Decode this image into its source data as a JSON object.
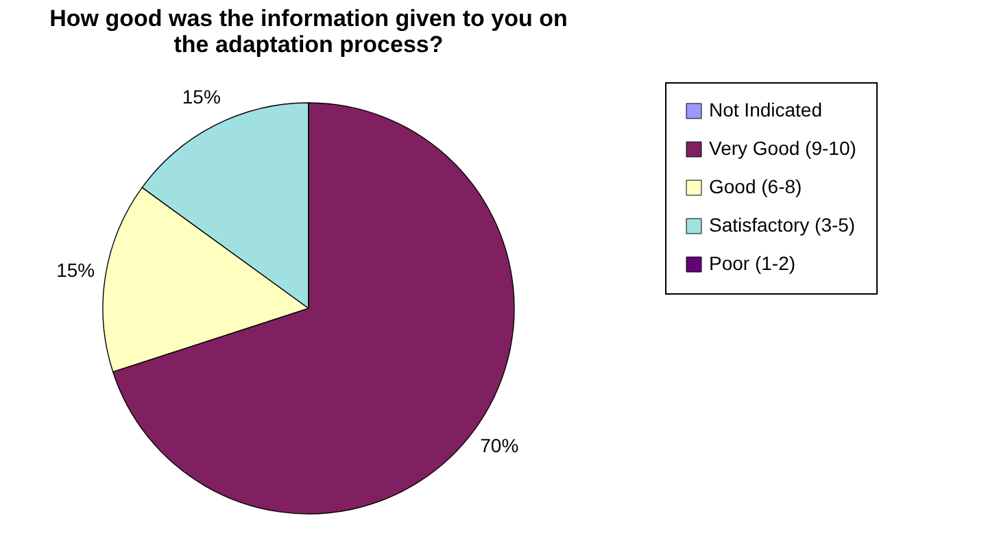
{
  "chart_data": {
    "type": "pie",
    "title": "How good was the information given to you on\nthe adaptation process?",
    "categories": [
      "Not Indicated",
      "Very Good (9-10)",
      "Good (6-8)",
      "Satisfactory (3-5)",
      "Poor (1-2)"
    ],
    "values": [
      0,
      70,
      15,
      15,
      0
    ],
    "colors": [
      "#9999ff",
      "#802060",
      "#ffffc0",
      "#a0e0e0",
      "#660077"
    ],
    "value_labels": [
      null,
      "70%",
      "15%",
      "15%",
      null
    ],
    "legend": "right"
  }
}
